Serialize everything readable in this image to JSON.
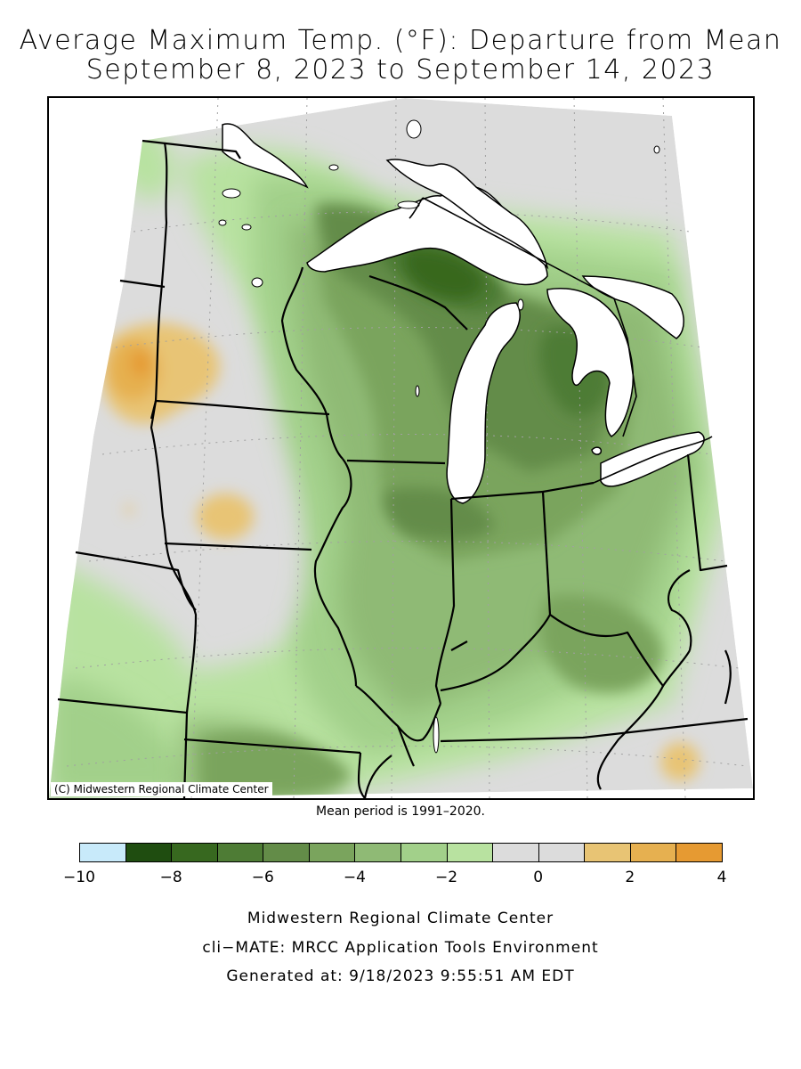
{
  "map": {
    "title_line1": "Average Maximum Temp. (°F): Departure from Mean",
    "title_line2": "September 8, 2023 to September 14, 2023",
    "credit": "(C) Midwestern Regional Climate Center",
    "mean_period": "Mean period is 1991–2020.",
    "region": "Midwest"
  },
  "legend": {
    "bins": [
      {
        "range": [
          -10,
          -9
        ],
        "color": "#c8eafa"
      },
      {
        "range": [
          -9,
          -8
        ],
        "color": "#1f4d10"
      },
      {
        "range": [
          -8,
          -7
        ],
        "color": "#37681f"
      },
      {
        "range": [
          -7,
          -6
        ],
        "color": "#4e7c35"
      },
      {
        "range": [
          -6,
          -5
        ],
        "color": "#638c48"
      },
      {
        "range": [
          -5,
          -4
        ],
        "color": "#7aa45d"
      },
      {
        "range": [
          -4,
          -3
        ],
        "color": "#8fba75"
      },
      {
        "range": [
          -3,
          -2
        ],
        "color": "#a2d08a"
      },
      {
        "range": [
          -2,
          -1
        ],
        "color": "#b8e2a0"
      },
      {
        "range": [
          -1,
          0
        ],
        "color": "#dcdcdc"
      },
      {
        "range": [
          0,
          1
        ],
        "color": "#dcdcdc"
      },
      {
        "range": [
          1,
          2
        ],
        "color": "#e8c474"
      },
      {
        "range": [
          2,
          3
        ],
        "color": "#e6b050"
      },
      {
        "range": [
          3,
          4
        ],
        "color": "#e69a32"
      }
    ],
    "tick_labels": [
      "−10",
      "−8",
      "−6",
      "−4",
      "−2",
      "0",
      "2",
      "4"
    ]
  },
  "footer": {
    "line1": "Midwestern Regional Climate Center",
    "line2": "cli−MATE: MRCC Application Tools Environment",
    "line3": "Generated at: 9/18/2023 9:55:51 AM EDT"
  }
}
